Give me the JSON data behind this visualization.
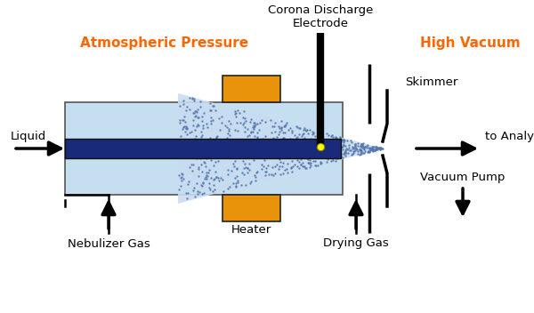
{
  "bg_color": "#ffffff",
  "orange_color": "#E8930A",
  "dark_blue": "#1a2a7a",
  "light_blue_outer": "#c5dff0",
  "light_blue_inner": "#d8ecf8",
  "spray_dot_color": "#5577aa",
  "spray_fill": "#c8dcf0",
  "black": "#000000",
  "atm_pressure_label": "Atmospheric Pressure",
  "high_vacuum_label": "High Vacuum",
  "corona_label1": "Corona Discharge",
  "corona_label2": "Electrode",
  "skimmer_label": "Skimmer",
  "liquid_label": "Liquid",
  "heater_label": "Heater",
  "nebulizer_label": "Nebulizer Gas",
  "drying_label": "Drying Gas",
  "analyzer_label": "to Analyzer",
  "vacuum_pump_label": "Vacuum Pump",
  "label_color_orange": "#FF6600",
  "label_color_black": "#000000",
  "figw": 6.0,
  "figh": 3.52,
  "dpi": 100
}
